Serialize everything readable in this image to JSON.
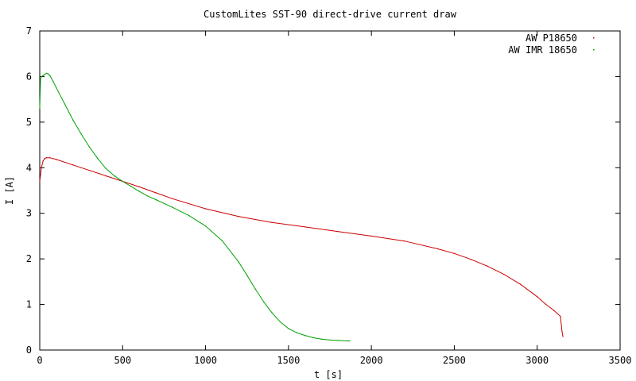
{
  "chart_data": {
    "type": "scatter",
    "title": "CustomLites SST-90 direct-drive current draw",
    "xlabel": "t [s]",
    "ylabel": "I [A]",
    "xlim": [
      0,
      3500
    ],
    "ylim": [
      0,
      7
    ],
    "xticks": [
      0,
      500,
      1000,
      1500,
      2000,
      2500,
      3000,
      3500
    ],
    "yticks": [
      0,
      1,
      2,
      3,
      4,
      5,
      6,
      7
    ],
    "grid": false,
    "legend": "top-right",
    "series": [
      {
        "name": "AW P18650",
        "color": "#cc0000",
        "x": [
          0,
          10,
          20,
          30,
          40,
          60,
          100,
          200,
          300,
          400,
          500,
          600,
          700,
          800,
          1000,
          1200,
          1400,
          1600,
          1800,
          2000,
          2200,
          2400,
          2500,
          2600,
          2700,
          2800,
          2900,
          3000,
          3050,
          3100,
          3140,
          3150,
          3155
        ],
        "y": [
          3.7,
          4.0,
          4.15,
          4.2,
          4.22,
          4.22,
          4.18,
          4.06,
          3.94,
          3.82,
          3.7,
          3.58,
          3.45,
          3.32,
          3.1,
          2.93,
          2.8,
          2.7,
          2.6,
          2.5,
          2.39,
          2.22,
          2.12,
          1.99,
          1.84,
          1.66,
          1.44,
          1.17,
          1.01,
          0.87,
          0.74,
          0.4,
          0.3
        ]
      },
      {
        "name": "AW IMR 18650",
        "color": "#00a000",
        "x": [
          0,
          5,
          10,
          20,
          30,
          40,
          50,
          60,
          80,
          100,
          150,
          200,
          250,
          300,
          350,
          400,
          450,
          500,
          550,
          600,
          650,
          700,
          800,
          900,
          1000,
          1100,
          1200,
          1250,
          1300,
          1350,
          1400,
          1450,
          1500,
          1550,
          1600,
          1650,
          1700,
          1750,
          1800,
          1850,
          1870
        ],
        "y": [
          5.3,
          5.95,
          6.0,
          6.02,
          6.05,
          6.07,
          6.06,
          6.03,
          5.9,
          5.75,
          5.4,
          5.05,
          4.74,
          4.45,
          4.2,
          3.98,
          3.82,
          3.7,
          3.59,
          3.48,
          3.38,
          3.3,
          3.13,
          2.95,
          2.72,
          2.4,
          1.93,
          1.64,
          1.34,
          1.06,
          0.82,
          0.62,
          0.47,
          0.38,
          0.32,
          0.27,
          0.24,
          0.22,
          0.21,
          0.2,
          0.2
        ]
      }
    ]
  }
}
